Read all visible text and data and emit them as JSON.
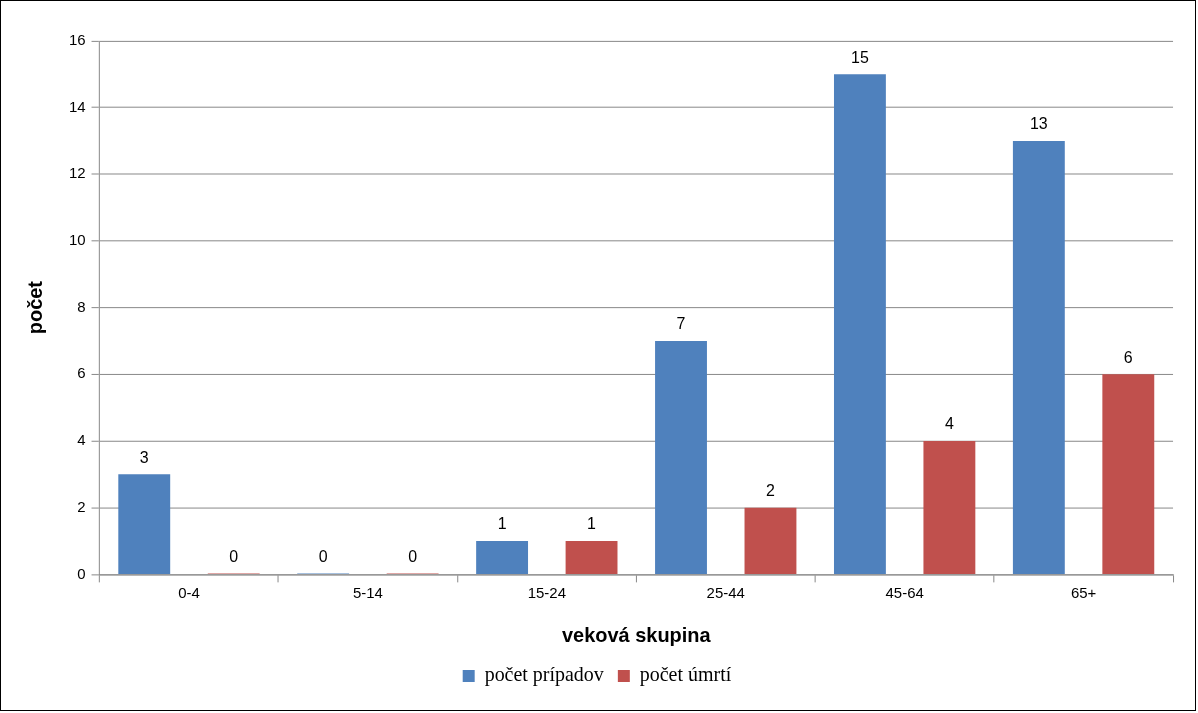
{
  "chart_data": {
    "type": "bar",
    "xlabel": "veková skupina",
    "ylabel": "počet",
    "categories": [
      "0-4",
      "5-14",
      "15-24",
      "25-44",
      "45-64",
      "65+"
    ],
    "series": [
      {
        "name": "počet prípadov",
        "color": "#4f81bd",
        "values": [
          3,
          0,
          1,
          7,
          15,
          13
        ]
      },
      {
        "name": "počet úmrtí",
        "color": "#c0504d",
        "values": [
          0,
          0,
          1,
          2,
          4,
          6
        ]
      }
    ],
    "ylim": [
      0,
      16
    ],
    "yticks": [
      0,
      2,
      4,
      6,
      8,
      10,
      12,
      14,
      16
    ],
    "grid": "y",
    "legend": "bottom",
    "data_labels": true
  }
}
